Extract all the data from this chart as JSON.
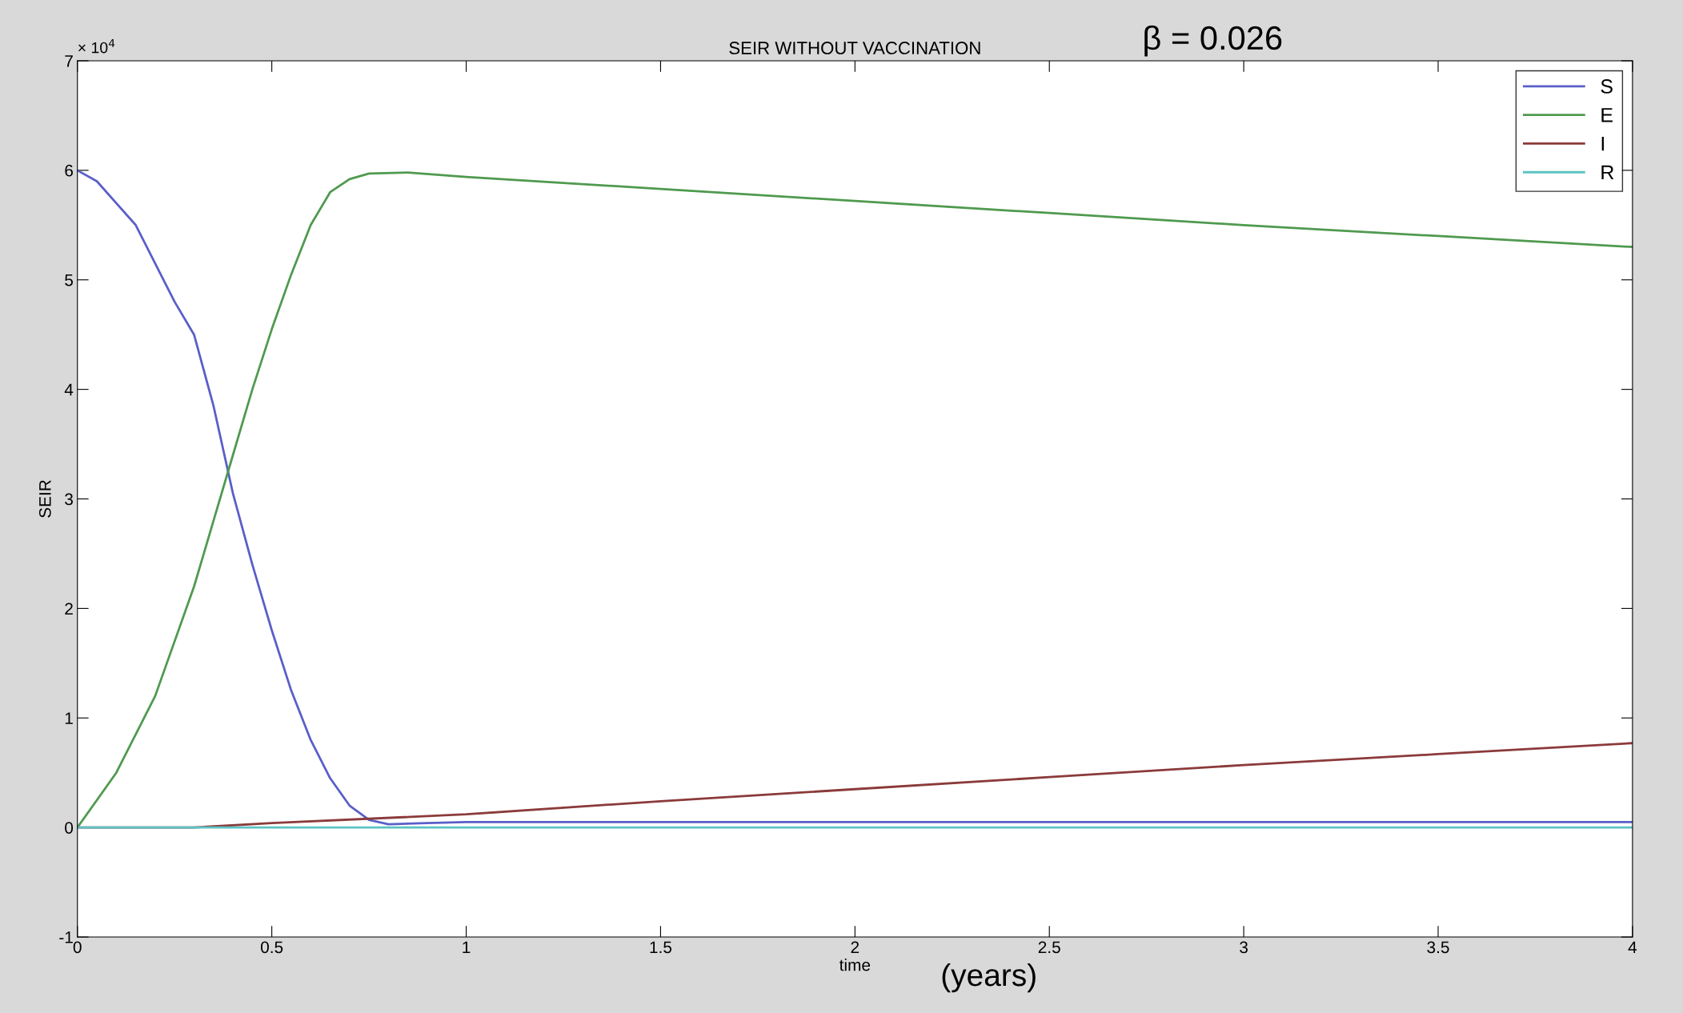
{
  "chart_data": {
    "type": "line",
    "title": "SEIR WITHOUT VACCINATION",
    "subtitle": "β = 0.026",
    "xlabel": "time",
    "ylabel": "SEIR",
    "annotations": [
      "× 10$^{4}$",
      "(years)"
    ],
    "xlim": [
      0,
      4
    ],
    "xticks": [
      0,
      0.5,
      1,
      1.5,
      2,
      2.5,
      3,
      3.5,
      4
    ],
    "ylim": [
      -1,
      7
    ],
    "yticks": [
      -1,
      0,
      1,
      2,
      3,
      4,
      5,
      6,
      7
    ],
    "grid": false,
    "legend": "top right",
    "marker": "none",
    "line_style": "solid",
    "series": [
      {
        "name": "S",
        "color": "#5a5fc8",
        "x": [
          0,
          0.05,
          0.15,
          0.25,
          0.3,
          0.35,
          0.4,
          0.45,
          0.5,
          0.55,
          0.6,
          0.65,
          0.7,
          0.75,
          0.8,
          0.9,
          1,
          2,
          3,
          4
        ],
        "values": [
          6,
          5.9,
          5.5,
          4.8,
          4.5,
          3.85,
          3.05,
          2.4,
          1.8,
          1.25,
          0.8,
          0.45,
          0.2,
          0.07,
          0.03,
          0.04,
          0.05,
          0.05,
          0.05,
          0.05
        ]
      },
      {
        "name": "E",
        "color": "#4f9a4f",
        "x": [
          0,
          0.05,
          0.1,
          0.2,
          0.3,
          0.35,
          0.4,
          0.45,
          0.5,
          0.55,
          0.6,
          0.65,
          0.7,
          0.75,
          0.85,
          1,
          1.5,
          2,
          2.5,
          3,
          3.5,
          4
        ],
        "values": [
          0,
          0.25,
          0.5,
          1.2,
          2.2,
          2.8,
          3.4,
          4,
          4.55,
          5.05,
          5.5,
          5.8,
          5.92,
          5.97,
          5.98,
          5.94,
          5.83,
          5.72,
          5.61,
          5.5,
          5.4,
          5.3
        ]
      },
      {
        "name": "I",
        "color": "#8b3a3a",
        "x": [
          0,
          0.3,
          0.5,
          1,
          1.5,
          2,
          2.5,
          3,
          3.5,
          4
        ],
        "values": [
          0,
          0,
          0.04,
          0.12,
          0.24,
          0.35,
          0.46,
          0.57,
          0.67,
          0.77
        ]
      },
      {
        "name": "R",
        "color": "#5cc4c4",
        "x": [
          0,
          1,
          2,
          3,
          4
        ],
        "values": [
          0,
          0,
          0,
          0,
          0
        ]
      }
    ]
  }
}
